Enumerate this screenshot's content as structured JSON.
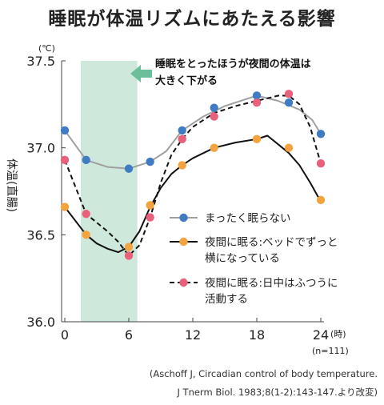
{
  "title": "睡眠が体温リズムにあたえる影響",
  "chart_data": {
    "type": "line",
    "unit_label": "(℃)",
    "ylabel": "体温(直腸)",
    "xunit": "(時)",
    "n_label": "(n=111)",
    "ylim": [
      36.0,
      37.5
    ],
    "xlim": [
      -0.3,
      24.3
    ],
    "yticks": [
      36.0,
      36.5,
      37.0,
      37.5
    ],
    "ytick_labels": [
      "36.0",
      "36.5",
      "37.0",
      "37.5"
    ],
    "xticks": [
      0,
      6,
      12,
      18,
      24
    ],
    "xtick_labels": [
      "0",
      "6",
      "12",
      "18",
      "24"
    ],
    "sleep_band": [
      1.5,
      6.8
    ],
    "annotation": [
      "睡眠をとったほうが夜間の体温は",
      "大きく下がる"
    ],
    "series": [
      {
        "name": "まったく眠らない",
        "name_lines": [
          "まったく眠らない"
        ],
        "line_color": "#a0a0a0",
        "line_style": "solid",
        "marker_color": "#3f7cc4",
        "line_x": [
          0,
          2,
          4,
          6,
          8,
          9.5,
          11,
          13,
          15,
          17,
          18,
          20,
          22,
          23.2,
          24
        ],
        "line_y": [
          37.1,
          36.93,
          36.89,
          36.88,
          36.92,
          36.98,
          37.1,
          37.18,
          37.24,
          37.28,
          37.3,
          37.27,
          37.22,
          37.16,
          37.08
        ],
        "marker_x": [
          0,
          2,
          6,
          8,
          11,
          14,
          18,
          21,
          24
        ],
        "marker_y": [
          37.1,
          36.93,
          36.88,
          36.92,
          37.1,
          37.23,
          37.3,
          37.26,
          37.08
        ]
      },
      {
        "name": "夜間に眠る:ベッドでずっと横になっている",
        "name_lines": [
          "夜間に眠る:ベッドでずっと",
          "横になっている"
        ],
        "line_color": "#111111",
        "line_style": "solid",
        "marker_color": "#f3a33f",
        "line_x": [
          0,
          2,
          3,
          4,
          5,
          6,
          7,
          8,
          9,
          10,
          11,
          12,
          14,
          16,
          18,
          19,
          20,
          21,
          22,
          23,
          24
        ],
        "line_y": [
          36.66,
          36.5,
          36.45,
          36.42,
          36.4,
          36.43,
          36.52,
          36.66,
          36.77,
          36.85,
          36.9,
          36.94,
          37.0,
          37.03,
          37.05,
          37.07,
          37.02,
          36.97,
          36.9,
          36.8,
          36.69
        ],
        "marker_x": [
          0,
          2,
          6,
          8,
          11,
          14,
          18,
          21,
          24
        ],
        "marker_y": [
          36.66,
          36.5,
          36.43,
          36.67,
          36.9,
          37.0,
          37.05,
          37.0,
          36.7
        ]
      },
      {
        "name": "夜間に眠る:日中はふつうに活動する",
        "name_lines": [
          "夜間に眠る:日中はふつうに",
          "活動する"
        ],
        "line_color": "#111111",
        "line_style": "dashed",
        "marker_color": "#e8607a",
        "line_x": [
          0,
          2,
          4,
          5,
          6,
          7,
          8,
          9,
          10,
          11,
          12,
          14,
          16,
          18,
          20,
          21,
          22,
          23,
          24
        ],
        "line_y": [
          36.93,
          36.62,
          36.52,
          36.46,
          36.38,
          36.44,
          36.6,
          36.8,
          36.96,
          37.05,
          37.12,
          37.2,
          37.24,
          37.27,
          37.3,
          37.3,
          37.25,
          37.12,
          36.91
        ],
        "marker_x": [
          0,
          2,
          6,
          8,
          11,
          14,
          18,
          21,
          24
        ],
        "marker_y": [
          36.93,
          36.62,
          36.38,
          36.6,
          37.05,
          37.18,
          37.26,
          37.31,
          36.91
        ]
      }
    ]
  },
  "source": [
    "(Aschoff J, Circadian control of body temperature.",
    "J Tnerm Biol. 1983;8(1-2):143-147.より改変)"
  ]
}
